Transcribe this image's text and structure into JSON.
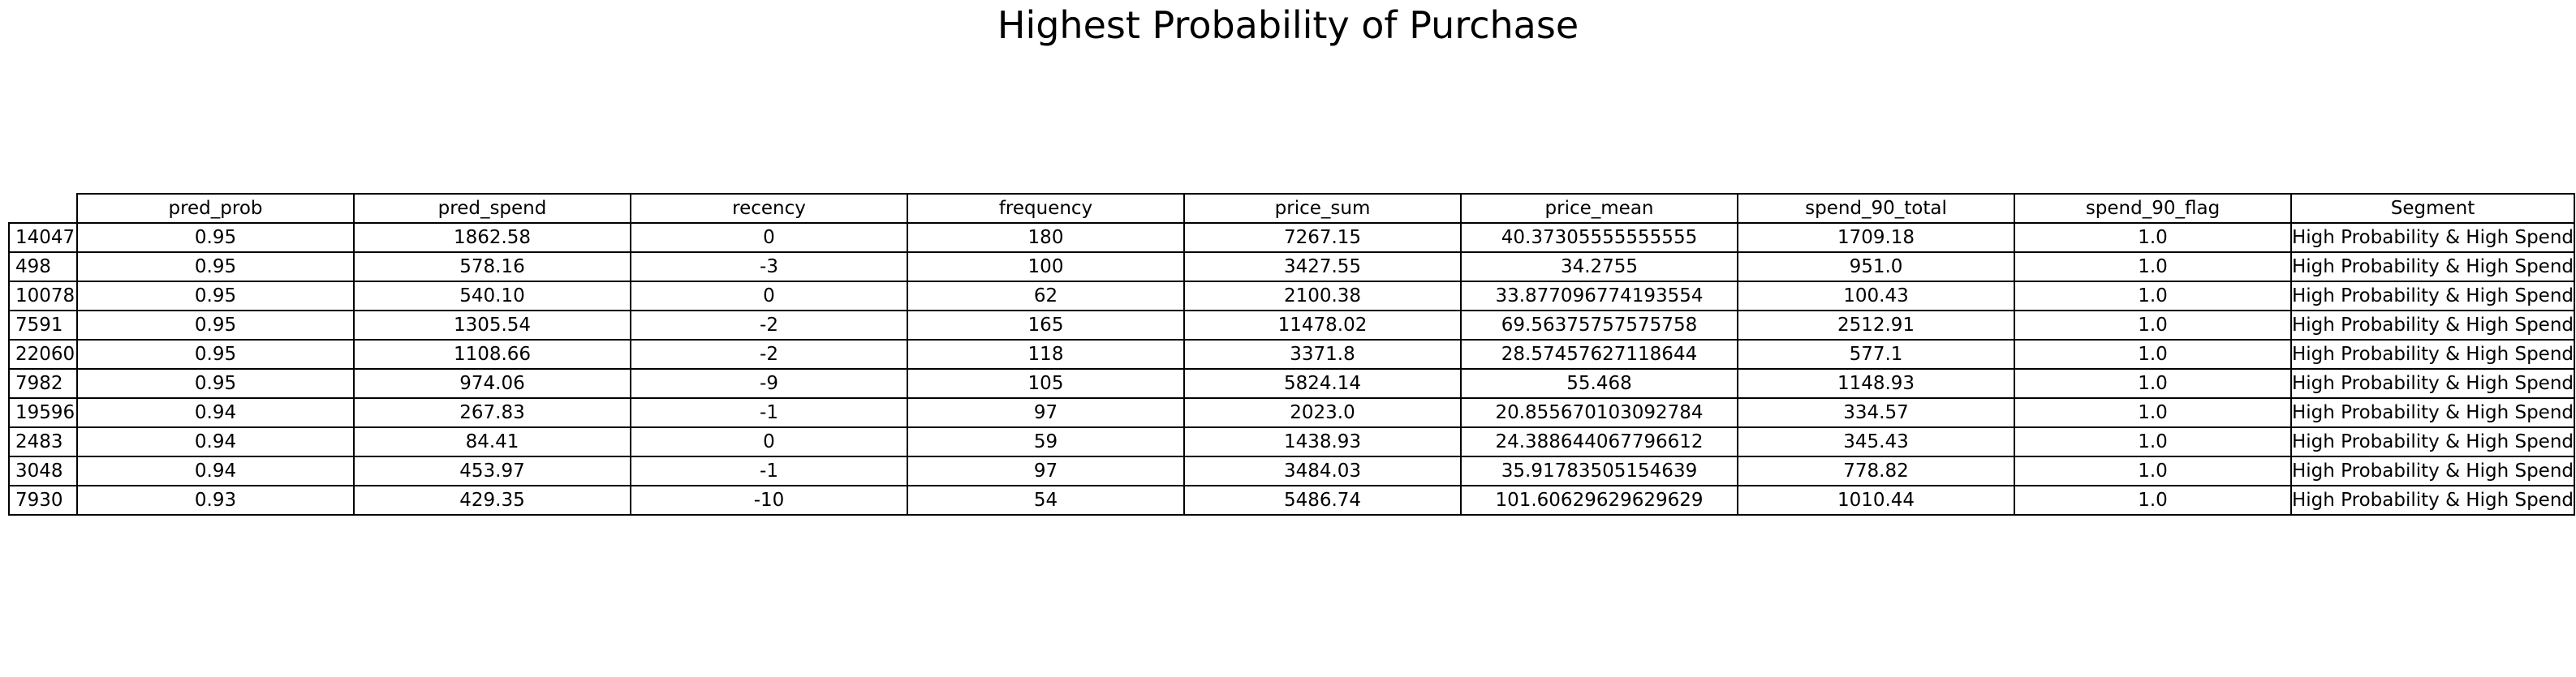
{
  "chart_data": {
    "type": "table",
    "title": "Highest Probability of Purchase",
    "columns": [
      "pred_prob",
      "pred_spend",
      "recency",
      "frequency",
      "price_sum",
      "price_mean",
      "spend_90_total",
      "spend_90_flag",
      "Segment"
    ],
    "rows": [
      {
        "index": "14047",
        "cells": [
          "0.95",
          "1862.58",
          "0",
          "180",
          "7267.15",
          "40.37305555555555",
          "1709.18",
          "1.0",
          "High Probability & High Spend"
        ]
      },
      {
        "index": "498",
        "cells": [
          "0.95",
          "578.16",
          "-3",
          "100",
          "3427.55",
          "34.2755",
          "951.0",
          "1.0",
          "High Probability & High Spend"
        ]
      },
      {
        "index": "10078",
        "cells": [
          "0.95",
          "540.10",
          "0",
          "62",
          "2100.38",
          "33.877096774193554",
          "100.43",
          "1.0",
          "High Probability & High Spend"
        ]
      },
      {
        "index": "7591",
        "cells": [
          "0.95",
          "1305.54",
          "-2",
          "165",
          "11478.02",
          "69.56375757575758",
          "2512.91",
          "1.0",
          "High Probability & High Spend"
        ]
      },
      {
        "index": "22060",
        "cells": [
          "0.95",
          "1108.66",
          "-2",
          "118",
          "3371.8",
          "28.57457627118644",
          "577.1",
          "1.0",
          "High Probability & High Spend"
        ]
      },
      {
        "index": "7982",
        "cells": [
          "0.95",
          "974.06",
          "-9",
          "105",
          "5824.14",
          "55.468",
          "1148.93",
          "1.0",
          "High Probability & High Spend"
        ]
      },
      {
        "index": "19596",
        "cells": [
          "0.94",
          "267.83",
          "-1",
          "97",
          "2023.0",
          "20.855670103092784",
          "334.57",
          "1.0",
          "High Probability & High Spend"
        ]
      },
      {
        "index": "2483",
        "cells": [
          "0.94",
          "84.41",
          "0",
          "59",
          "1438.93",
          "24.388644067796612",
          "345.43",
          "1.0",
          "High Probability & High Spend"
        ]
      },
      {
        "index": "3048",
        "cells": [
          "0.94",
          "453.97",
          "-1",
          "97",
          "3484.03",
          "35.91783505154639",
          "778.82",
          "1.0",
          "High Probability & High Spend"
        ]
      },
      {
        "index": "7930",
        "cells": [
          "0.93",
          "429.35",
          "-10",
          "54",
          "5486.74",
          "101.60629629629629",
          "1010.44",
          "1.0",
          "High Probability & High Spend"
        ]
      }
    ]
  }
}
